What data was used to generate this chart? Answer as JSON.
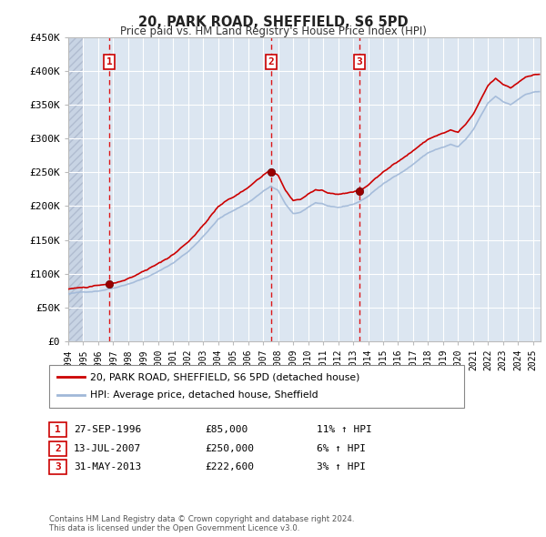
{
  "title": "20, PARK ROAD, SHEFFIELD, S6 5PD",
  "subtitle": "Price paid vs. HM Land Registry's House Price Index (HPI)",
  "ylim": [
    0,
    450000
  ],
  "yticks": [
    0,
    50000,
    100000,
    150000,
    200000,
    250000,
    300000,
    350000,
    400000,
    450000
  ],
  "ytick_labels": [
    "£0",
    "£50K",
    "£100K",
    "£150K",
    "£200K",
    "£250K",
    "£300K",
    "£350K",
    "£400K",
    "£450K"
  ],
  "background_color": "#ffffff",
  "plot_bg_color": "#dce6f1",
  "grid_color": "#ffffff",
  "sale_dates": [
    1996.74,
    2007.53,
    2013.41
  ],
  "sale_prices": [
    85000,
    250000,
    222600
  ],
  "sale_labels": [
    "1",
    "2",
    "3"
  ],
  "legend_line1": "20, PARK ROAD, SHEFFIELD, S6 5PD (detached house)",
  "legend_line2": "HPI: Average price, detached house, Sheffield",
  "table_rows": [
    [
      "1",
      "27-SEP-1996",
      "£85,000",
      "11% ↑ HPI"
    ],
    [
      "2",
      "13-JUL-2007",
      "£250,000",
      "6% ↑ HPI"
    ],
    [
      "3",
      "31-MAY-2013",
      "£222,600",
      "3% ↑ HPI"
    ]
  ],
  "footer": "Contains HM Land Registry data © Crown copyright and database right 2024.\nThis data is licensed under the Open Government Licence v3.0.",
  "hpi_color": "#a0b8d8",
  "sale_line_color": "#cc0000",
  "sale_dot_color": "#990000",
  "vline_color": "#dd0000",
  "box_color": "#cc0000",
  "xmin": 1994.0,
  "xmax": 2025.5,
  "xticks": [
    1994,
    1995,
    1996,
    1997,
    1998,
    1999,
    2000,
    2001,
    2002,
    2003,
    2004,
    2005,
    2006,
    2007,
    2008,
    2009,
    2010,
    2011,
    2012,
    2013,
    2014,
    2015,
    2016,
    2017,
    2018,
    2019,
    2020,
    2021,
    2022,
    2023,
    2024,
    2025
  ]
}
